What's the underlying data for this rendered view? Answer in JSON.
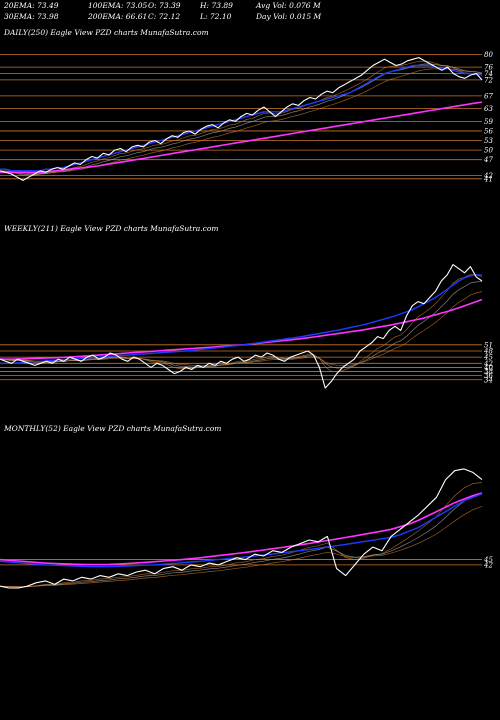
{
  "header": {
    "ema20": "20EMA: 73.49",
    "ema100": "100EMA: 73.05",
    "open": "O: 73.39",
    "high": "H: 73.89",
    "avg_vol": "Avg Vol: 0.076  M",
    "ema30": "30EMA: 73.98",
    "ema200": "200EMA: 66.61",
    "close": "C: 72.12",
    "low": "L: 72.10",
    "day_vol": "Day Vol: 0.015 M"
  },
  "colors": {
    "background": "#000000",
    "price": "#ffffff",
    "ema_short": "#1a3cff",
    "ema_long": "#ff33ff",
    "ema_mid": "#c87a2a",
    "ema_other": "#aaaaaa",
    "level_line": "#c8742c"
  },
  "chart_data": [
    {
      "type": "line",
      "title": "DAILY(250) Eagle  View  PZD charts MunafaSutra.com",
      "ylim": [
        40,
        82
      ],
      "levels": [
        "80",
        "76",
        "74",
        "72",
        "67",
        "63",
        "59",
        "56",
        "53",
        "50",
        "47",
        "42",
        "41"
      ],
      "level_values": [
        80,
        76,
        74,
        72,
        67,
        63,
        59,
        56,
        53,
        50,
        47,
        42,
        41
      ],
      "series": [
        {
          "role": "price",
          "values": [
            43.5,
            43.0,
            42.5,
            41.5,
            40.5,
            41.5,
            42.5,
            43.5,
            43.0,
            44.0,
            44.5,
            44.0,
            45.0,
            46.0,
            45.5,
            47.0,
            48.0,
            47.5,
            49.0,
            48.5,
            50.0,
            50.5,
            49.5,
            51.0,
            51.5,
            51.0,
            52.5,
            53.0,
            52.0,
            53.5,
            54.5,
            54.0,
            55.5,
            56.0,
            55.0,
            56.5,
            57.5,
            58.0,
            57.0,
            58.5,
            59.5,
            59.0,
            60.5,
            61.5,
            61.0,
            62.5,
            63.5,
            62.0,
            60.5,
            62.0,
            63.5,
            64.5,
            64.0,
            65.5,
            66.5,
            66.0,
            67.5,
            68.5,
            68.0,
            69.5,
            70.5,
            71.5,
            72.5,
            73.5,
            75.0,
            76.5,
            77.5,
            78.5,
            77.5,
            76.5,
            77.0,
            78.0,
            78.5,
            79.0,
            78.0,
            77.0,
            76.0,
            75.0,
            76.0,
            74.0,
            73.0,
            72.5,
            73.5,
            74.0,
            72.0
          ]
        },
        {
          "role": "ema_short",
          "values": [
            44,
            44,
            43.5,
            43.5,
            43.5,
            43.5,
            43.5,
            43.5,
            44,
            44,
            44.5,
            44.5,
            45,
            45.5,
            46,
            46.5,
            47,
            47.5,
            48,
            48.5,
            49,
            49.5,
            50,
            50.5,
            51,
            51.5,
            52,
            52.5,
            53,
            53.5,
            54,
            54.5,
            55,
            55.5,
            56,
            56.5,
            57,
            57.5,
            58,
            58.5,
            59,
            59.5,
            60,
            60.5,
            61,
            61.5,
            62,
            62,
            62,
            62,
            62.5,
            63,
            63.5,
            64,
            64.5,
            65,
            65.5,
            66,
            66.5,
            67,
            67.5,
            68,
            69,
            70,
            71,
            72,
            73,
            74,
            74.5,
            75,
            75.5,
            76,
            76.5,
            76.5,
            76.5,
            76.5,
            76,
            75.5,
            75.5,
            75,
            74.5,
            74,
            74,
            73.8,
            73.5
          ]
        },
        {
          "role": "ema_long",
          "values": [
            43,
            43,
            43,
            43,
            43,
            43,
            43,
            43,
            43.2,
            43.4,
            43.6,
            43.8,
            44,
            44.2,
            44.4,
            44.6,
            44.8,
            45,
            45.3,
            45.6,
            45.9,
            46.2,
            46.5,
            46.8,
            47.1,
            47.4,
            47.7,
            48,
            48.3,
            48.6,
            48.9,
            49.2,
            49.5,
            49.8,
            50.1,
            50.4,
            50.7,
            51,
            51.3,
            51.6,
            51.9,
            52.2,
            52.5,
            52.8,
            53.1,
            53.4,
            53.7,
            54,
            54.3,
            54.6,
            54.9,
            55.2,
            55.5,
            55.8,
            56.1,
            56.4,
            56.7,
            57,
            57.3,
            57.6,
            57.9,
            58.2,
            58.5,
            58.8,
            59.1,
            59.4,
            59.7,
            60,
            60.3,
            60.6,
            60.9,
            61.2,
            61.5,
            61.8,
            62.1,
            62.4,
            62.7,
            63,
            63.3,
            63.6,
            63.9,
            64.2,
            64.5,
            64.8,
            65.0
          ]
        }
      ]
    },
    {
      "type": "line",
      "title": "WEEKLY(211) Eagle  View  PZD charts MunafaSutra.com",
      "ylim": [
        30,
        100
      ],
      "levels": [
        "51",
        "48",
        "45",
        "42",
        "40",
        "38",
        "36",
        "34"
      ],
      "level_values": [
        51,
        48,
        45,
        42,
        40,
        38,
        36,
        34
      ],
      "series": [
        {
          "role": "price",
          "values": [
            44,
            43,
            42,
            44,
            43,
            42,
            41,
            42,
            43,
            42,
            44,
            43,
            45,
            44,
            43,
            45,
            46,
            44,
            45,
            47,
            46,
            44,
            43,
            45,
            44,
            42,
            40,
            42,
            41,
            39,
            37,
            38,
            40,
            39,
            41,
            40,
            42,
            41,
            43,
            42,
            44,
            45,
            43,
            44,
            46,
            45,
            47,
            46,
            44,
            43,
            45,
            46,
            47,
            48,
            46,
            40,
            30,
            33,
            37,
            40,
            42,
            44,
            48,
            50,
            52,
            55,
            54,
            58,
            60,
            58,
            65,
            70,
            72,
            71,
            74,
            77,
            82,
            85,
            90,
            88,
            86,
            89,
            84,
            82
          ]
        },
        {
          "role": "ema_short",
          "values": [
            42,
            42,
            42,
            42.2,
            42.4,
            42.6,
            42.8,
            43,
            43.2,
            43.4,
            43.6,
            43.8,
            44,
            44.2,
            44.4,
            44.6,
            44.8,
            45,
            45.2,
            45.4,
            45.6,
            45.8,
            46,
            46.2,
            46.4,
            46.6,
            46.8,
            47,
            47.2,
            47.4,
            47.6,
            47.8,
            48,
            48.3,
            48.6,
            48.9,
            49.2,
            49.5,
            49.8,
            50.1,
            50.4,
            50.7,
            51,
            51.4,
            51.8,
            52.2,
            52.6,
            53,
            53.4,
            53.8,
            54.2,
            54.6,
            55,
            55.5,
            56,
            56.5,
            57,
            57.5,
            58,
            58.6,
            59.2,
            59.8,
            60.4,
            61,
            61.8,
            62.6,
            63.4,
            64.2,
            65,
            66,
            67,
            68,
            69.5,
            71,
            72.5,
            74,
            76,
            78,
            80,
            82,
            83.5,
            84.5,
            85,
            85
          ]
        },
        {
          "role": "ema_long",
          "values": [
            44,
            44,
            44,
            44.1,
            44.2,
            44.3,
            44.4,
            44.5,
            44.6,
            44.7,
            44.8,
            44.9,
            45,
            45.2,
            45.4,
            45.6,
            45.8,
            46,
            46.2,
            46.4,
            46.6,
            46.8,
            47,
            47.2,
            47.4,
            47.6,
            47.8,
            48,
            48.2,
            48.4,
            48.6,
            48.8,
            49,
            49.2,
            49.4,
            49.6,
            49.8,
            50,
            50.2,
            50.4,
            50.6,
            50.8,
            51,
            51.3,
            51.6,
            51.9,
            52.2,
            52.5,
            52.8,
            53.1,
            53.4,
            53.7,
            54,
            54.4,
            54.8,
            55.2,
            55.6,
            56,
            56.4,
            56.8,
            57.2,
            57.6,
            58,
            58.5,
            59,
            59.5,
            60,
            60.5,
            61,
            61.6,
            62.2,
            62.8,
            63.4,
            64,
            64.8,
            65.6,
            66.4,
            67.2,
            68,
            69,
            70,
            71,
            72,
            73
          ]
        }
      ]
    },
    {
      "type": "line",
      "title": "MONTHLY(52) Eagle  View  PZD charts MunafaSutra.com",
      "ylim": [
        20,
        110
      ],
      "levels": [
        "45",
        "42"
      ],
      "level_values": [
        45,
        42
      ],
      "series": [
        {
          "role": "price",
          "values": [
            30,
            29,
            29,
            30,
            32,
            33,
            31,
            34,
            33,
            35,
            34,
            36,
            35,
            37,
            36,
            38,
            39,
            37,
            40,
            41,
            39,
            42,
            41,
            43,
            42,
            44,
            46,
            45,
            48,
            47,
            50,
            49,
            52,
            54,
            56,
            55,
            58,
            40,
            36,
            42,
            48,
            52,
            50,
            58,
            62,
            66,
            70,
            75,
            80,
            90,
            95,
            96,
            94,
            90
          ]
        },
        {
          "role": "ema_short",
          "values": [
            44,
            43.6,
            43.2,
            42.8,
            42.4,
            42,
            41.8,
            41.6,
            41.4,
            41.2,
            41,
            41,
            41,
            41.2,
            41.4,
            41.6,
            41.8,
            42,
            42.4,
            42.8,
            43.2,
            43.6,
            44,
            44.5,
            45,
            45.5,
            46,
            46.5,
            47,
            47.6,
            48.2,
            48.8,
            49.4,
            50,
            50.7,
            51.4,
            52.1,
            52.8,
            53.5,
            54.3,
            55.1,
            55.9,
            56.7,
            57.5,
            59,
            61,
            63,
            66,
            69,
            72,
            75,
            78,
            80,
            82
          ]
        },
        {
          "role": "ema_long",
          "values": [
            45,
            44.6,
            44.2,
            43.8,
            43.4,
            43,
            42.8,
            42.6,
            42.4,
            42.3,
            42.2,
            42.2,
            42.3,
            42.5,
            42.8,
            43.1,
            43.4,
            43.8,
            44.2,
            44.6,
            45,
            45.5,
            46,
            46.6,
            47.2,
            47.8,
            48.4,
            49,
            49.7,
            50.4,
            51.1,
            51.8,
            52.5,
            53.3,
            54.1,
            54.9,
            55.7,
            56.5,
            57.4,
            58.3,
            59.2,
            60.1,
            61,
            62,
            63.5,
            65,
            67,
            69.5,
            72,
            74.5,
            77,
            79,
            81,
            82.5
          ]
        }
      ]
    }
  ]
}
